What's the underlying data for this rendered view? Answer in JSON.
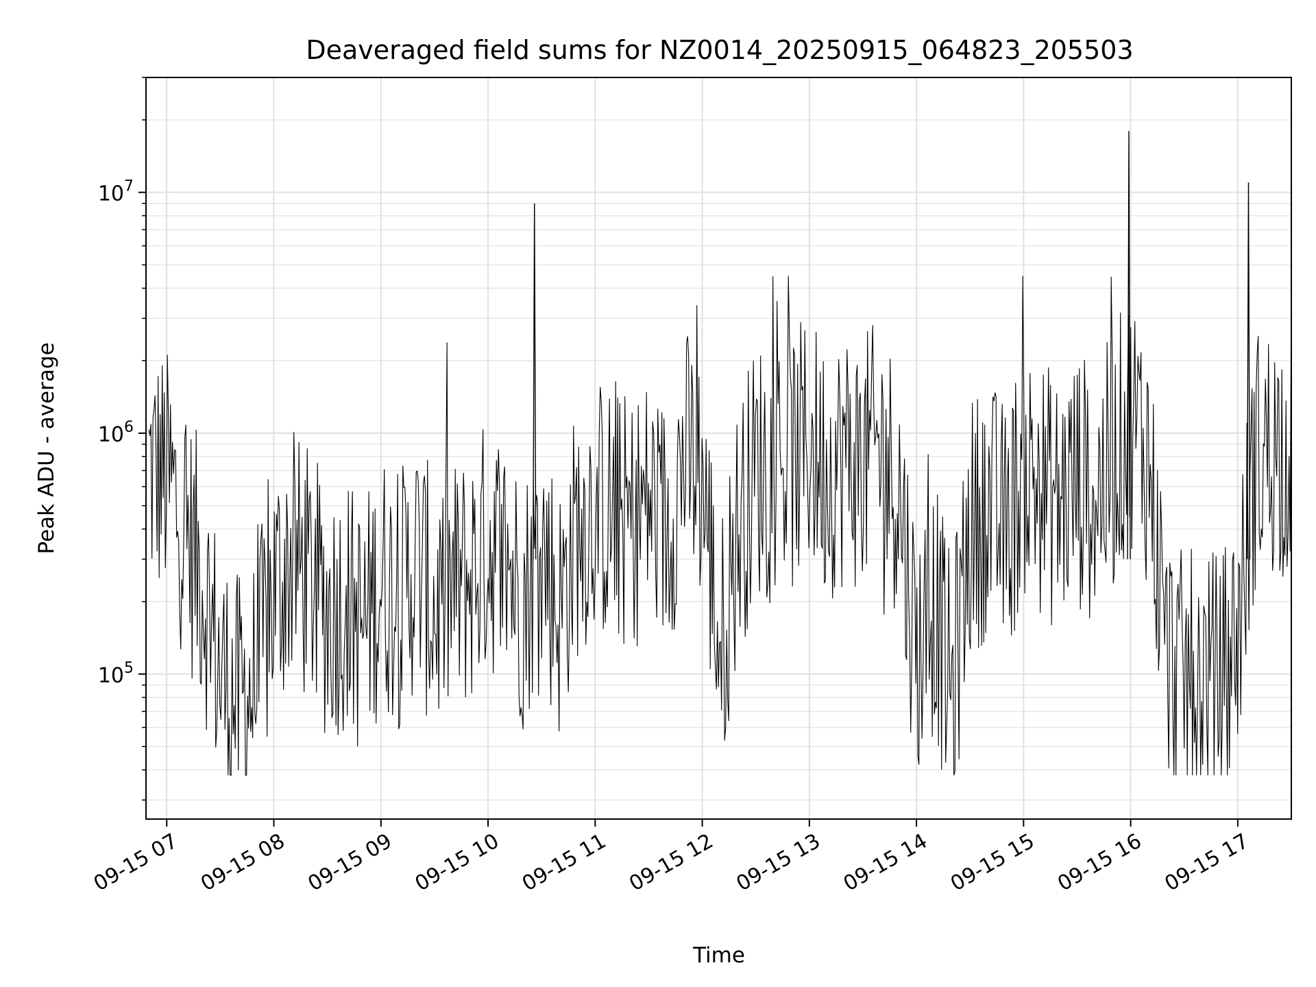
{
  "chart_data": {
    "type": "line",
    "title": "Deaveraged field sums for NZ0014_20250915_064823_205503",
    "xlabel": "Time",
    "ylabel": "Peak ADU - average",
    "yscale": "log",
    "ylim": [
      25000,
      30000000
    ],
    "xlim": [
      "2025-09-15T06:48:23",
      "2025-09-15T17:30:00"
    ],
    "grid": true,
    "line_color": "#000000",
    "x_tick_labels": [
      "09-15 07",
      "09-15 08",
      "09-15 09",
      "09-15 10",
      "09-15 11",
      "09-15 12",
      "09-15 13",
      "09-15 14",
      "09-15 15",
      "09-15 16",
      "09-15 17"
    ],
    "x_tick_values": [
      "2025-09-15T07:00",
      "2025-09-15T08:00",
      "2025-09-15T09:00",
      "2025-09-15T10:00",
      "2025-09-15T11:00",
      "2025-09-15T12:00",
      "2025-09-15T13:00",
      "2025-09-15T14:00",
      "2025-09-15T15:00",
      "2025-09-15T16:00",
      "2025-09-15T17:00"
    ],
    "y_tick_values": [
      100000,
      1000000,
      10000000
    ],
    "y_tick_labels": [
      {
        "base": "10",
        "exp": "5"
      },
      {
        "base": "10",
        "exp": "6"
      },
      {
        "base": "10",
        "exp": "7"
      }
    ],
    "series": [
      {
        "x": [
          "2025-09-15T06:50",
          "2025-09-15T07:00",
          "2025-09-15T07:10",
          "2025-09-15T07:20",
          "2025-09-15T07:30",
          "2025-09-15T07:40",
          "2025-09-15T07:50",
          "2025-09-15T08:00",
          "2025-09-15T08:10",
          "2025-09-15T08:20",
          "2025-09-15T08:30",
          "2025-09-15T08:40",
          "2025-09-15T08:50",
          "2025-09-15T09:00",
          "2025-09-15T09:10",
          "2025-09-15T09:20",
          "2025-09-15T09:30",
          "2025-09-15T09:40",
          "2025-09-15T09:50",
          "2025-09-15T10:00",
          "2025-09-15T10:10",
          "2025-09-15T10:20",
          "2025-09-15T10:30",
          "2025-09-15T10:40",
          "2025-09-15T10:50",
          "2025-09-15T11:00",
          "2025-09-15T11:10",
          "2025-09-15T11:20",
          "2025-09-15T11:30",
          "2025-09-15T11:40",
          "2025-09-15T11:50",
          "2025-09-15T12:00",
          "2025-09-15T12:10",
          "2025-09-15T12:20",
          "2025-09-15T12:30",
          "2025-09-15T12:40",
          "2025-09-15T12:50",
          "2025-09-15T13:00",
          "2025-09-15T13:10",
          "2025-09-15T13:20",
          "2025-09-15T13:30",
          "2025-09-15T13:40",
          "2025-09-15T13:50",
          "2025-09-15T14:00",
          "2025-09-15T14:10",
          "2025-09-15T14:20",
          "2025-09-15T14:30",
          "2025-09-15T14:40",
          "2025-09-15T14:50",
          "2025-09-15T15:00",
          "2025-09-15T15:10",
          "2025-09-15T15:20",
          "2025-09-15T15:30",
          "2025-09-15T15:40",
          "2025-09-15T15:50",
          "2025-09-15T16:00",
          "2025-09-15T16:10",
          "2025-09-15T16:20",
          "2025-09-15T16:30",
          "2025-09-15T16:40",
          "2025-09-15T16:50",
          "2025-09-15T17:00",
          "2025-09-15T17:10",
          "2025-09-15T17:20",
          "2025-09-15T17:30"
        ],
        "values": [
          700000,
          650000,
          400000,
          250000,
          100000,
          75000,
          90000,
          220000,
          300000,
          250000,
          180000,
          200000,
          150000,
          250000,
          200000,
          300000,
          180000,
          220000,
          250000,
          350000,
          300000,
          200000,
          350000,
          180000,
          400000,
          500000,
          450000,
          420000,
          520000,
          400000,
          800000,
          650000,
          120000,
          400000,
          700000,
          800000,
          750000,
          900000,
          700000,
          800000,
          750000,
          850000,
          600000,
          120000,
          200000,
          80000,
          400000,
          500000,
          380000,
          700000,
          600000,
          500000,
          650000,
          550000,
          750000,
          1200000,
          800000,
          120000,
          90000,
          100000,
          90000,
          150000,
          800000,
          850000,
          900000
        ]
      }
    ],
    "peaks": [
      {
        "x": "2025-09-15T10:26",
        "value": 9000000
      },
      {
        "x": "2025-09-15T15:59",
        "value": 18000000
      },
      {
        "x": "2025-09-15T17:06",
        "value": 11000000
      }
    ]
  }
}
